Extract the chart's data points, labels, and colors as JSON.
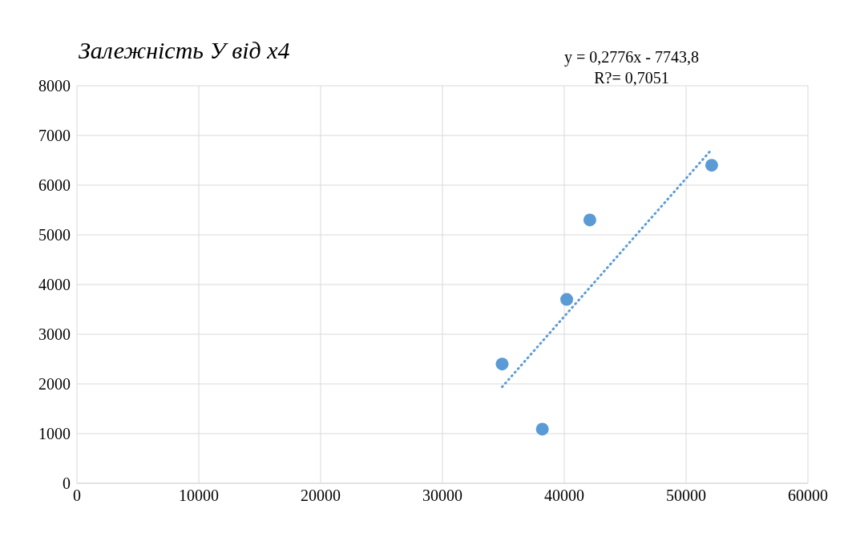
{
  "chart_data": {
    "type": "scatter",
    "title": "Залежність У від х4",
    "annotations": [
      "y = 0,2776x - 7743,8",
      "R?= 0,7051"
    ],
    "xlim": [
      0,
      60000
    ],
    "xticks": [
      0,
      10000,
      20000,
      30000,
      40000,
      50000,
      60000
    ],
    "ylim": [
      0,
      8000
    ],
    "yticks": [
      0,
      1000,
      2000,
      3000,
      4000,
      5000,
      6000,
      7000,
      8000
    ],
    "grid": true,
    "marker": "circle",
    "series": [
      {
        "color": "#5b9bd5",
        "x": [
          34900,
          38200,
          40200,
          42100,
          52100
        ],
        "values": [
          2400,
          1090,
          3700,
          5300,
          6400
        ]
      },
      {
        "type": "line",
        "color": "#5b9bd5",
        "line_style": "dotted",
        "marker": "none",
        "x": [
          34900,
          52100
        ],
        "values": [
          1940,
          6720
        ]
      }
    ]
  }
}
